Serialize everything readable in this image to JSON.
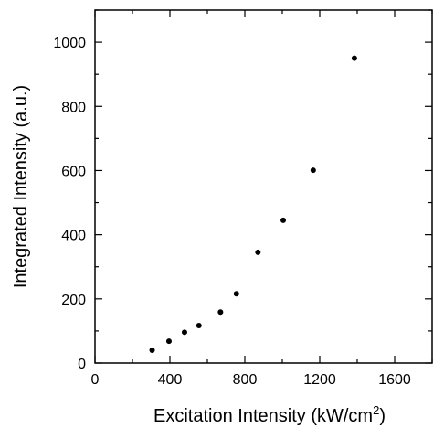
{
  "chart_data": {
    "type": "scatter",
    "xlabel": "Excitation Intensity (kW/cm",
    "xlabel_sup": "2",
    "xlabel_end": ")",
    "ylabel": "Integrated Intensity (a.u.)",
    "xlim": [
      0,
      1800
    ],
    "ylim": [
      0,
      1100
    ],
    "x_ticks": [
      0,
      400,
      800,
      1200,
      1600
    ],
    "y_ticks": [
      0,
      200,
      400,
      600,
      800,
      1000
    ],
    "x_minor_step": 200,
    "y_minor_step": 100,
    "grid": false,
    "series": [
      {
        "points": [
          {
            "x": 305,
            "y": 40
          },
          {
            "x": 395,
            "y": 68
          },
          {
            "x": 478,
            "y": 96
          },
          {
            "x": 555,
            "y": 117
          },
          {
            "x": 670,
            "y": 159
          },
          {
            "x": 755,
            "y": 216
          },
          {
            "x": 870,
            "y": 345
          },
          {
            "x": 1005,
            "y": 445
          },
          {
            "x": 1165,
            "y": 601
          },
          {
            "x": 1385,
            "y": 950
          }
        ]
      }
    ],
    "colors": {
      "marker": "#000000",
      "axis": "#000000",
      "background": "#ffffff"
    }
  }
}
